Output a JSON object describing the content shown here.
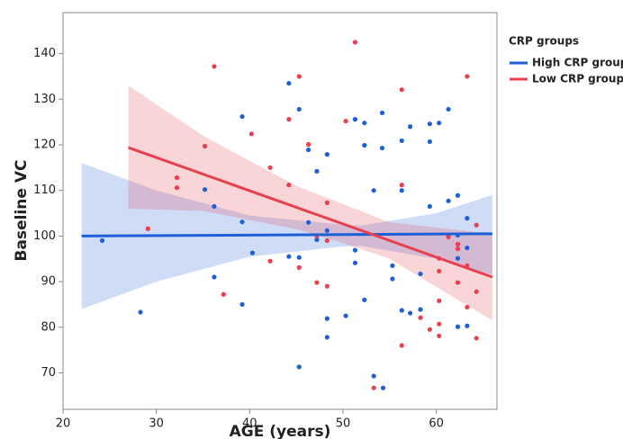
{
  "chart_data": {
    "type": "scatter",
    "x_label": "AGE (years)",
    "y_label": "Baseline VC",
    "legend_title": "CRP groups",
    "legend": "right",
    "xlim": [
      20,
      66.5
    ],
    "ylim": [
      62,
      149
    ],
    "xticks": [
      20,
      30,
      40,
      50,
      60
    ],
    "yticks": [
      70,
      80,
      90,
      100,
      110,
      120,
      130,
      140
    ],
    "series": [
      {
        "name": "High CRP group",
        "color": "#1f5fd6",
        "x": [
          24.2,
          28.3,
          35.2,
          36.2,
          36.2,
          39.2,
          39.2,
          39.2,
          40.3,
          44.2,
          44.2,
          45.3,
          45.3,
          45.3,
          46.3,
          46.3,
          47.2,
          47.2,
          48.3,
          48.3,
          48.3,
          48.3,
          50.3,
          51.3,
          51.3,
          51.3,
          52.3,
          52.3,
          52.3,
          53.3,
          53.3,
          54.2,
          54.2,
          54.3,
          55.3,
          55.3,
          56.3,
          56.3,
          56.3,
          57.2,
          57.2,
          58.3,
          58.3,
          59.3,
          59.3,
          59.3,
          60.3,
          61.3,
          61.3,
          62.3,
          62.3,
          62.3,
          62.3,
          63.3,
          63.3,
          63.3
        ],
        "values": [
          99,
          83.3,
          110.2,
          106.5,
          91,
          126.2,
          103.1,
          85,
          96.3,
          133.5,
          95.5,
          127.8,
          95.3,
          71.3,
          118.9,
          103,
          114.2,
          99.2,
          117.9,
          101.2,
          81.9,
          77.8,
          82.5,
          96.9,
          94.1,
          125.6,
          119.9,
          124.8,
          86,
          110,
          69.3,
          127,
          119.3,
          66.7,
          93.5,
          90.6,
          110,
          120.9,
          83.7,
          124,
          83.1,
          91.7,
          83.9,
          124.6,
          120.7,
          106.5,
          124.8,
          127.8,
          107.7,
          108.9,
          100.2,
          95.1,
          80.1,
          103.9,
          97.4,
          80.3
        ],
        "fit_x": [
          22,
          66
        ],
        "fit_y": [
          100,
          100.5
        ],
        "band_x": [
          22,
          30,
          40,
          50,
          52,
          60,
          66
        ],
        "band_upper": [
          116,
          110,
          104.5,
          102.5,
          102.3,
          105,
          109
        ],
        "band_lower": [
          84,
          90,
          95.5,
          97.7,
          97.8,
          95,
          91.5
        ]
      },
      {
        "name": "Low CRP group",
        "color": "#e8404f",
        "x": [
          29.1,
          32.2,
          32.2,
          35.2,
          36.2,
          37.2,
          40.2,
          42.2,
          42.2,
          44.2,
          44.2,
          45.3,
          45.3,
          46.3,
          47.2,
          47.2,
          48.3,
          48.3,
          48.3,
          50.3,
          51.3,
          53.3,
          56.3,
          56.3,
          56.3,
          58.3,
          59.3,
          60.3,
          60.3,
          60.3,
          60.3,
          60.3,
          61.3,
          62.3,
          62.3,
          62.3,
          63.3,
          63.3,
          63.3,
          64.3,
          64.3,
          64.3
        ],
        "values": [
          101.6,
          112.8,
          110.6,
          119.7,
          137.2,
          87.2,
          122.4,
          115,
          94.5,
          125.6,
          111.2,
          135,
          93.1,
          120.1,
          100,
          89.8,
          107.3,
          99,
          89,
          125.2,
          142.5,
          66.7,
          132.1,
          111.2,
          76,
          82.1,
          79.5,
          95.1,
          92.3,
          80.7,
          78.1,
          85.8,
          99.8,
          98.2,
          97.2,
          89.8,
          135,
          93.5,
          84.4,
          102.4,
          87.8,
          77.6
        ],
        "fit_x": [
          27,
          66
        ],
        "fit_y": [
          119.4,
          91
        ],
        "band_x": [
          27,
          35,
          45,
          50,
          55,
          66
        ],
        "band_upper": [
          133,
          122,
          111,
          107,
          103,
          100.5
        ],
        "band_lower": [
          106,
          105.5,
          101.5,
          98.5,
          95,
          81.5
        ]
      }
    ]
  }
}
